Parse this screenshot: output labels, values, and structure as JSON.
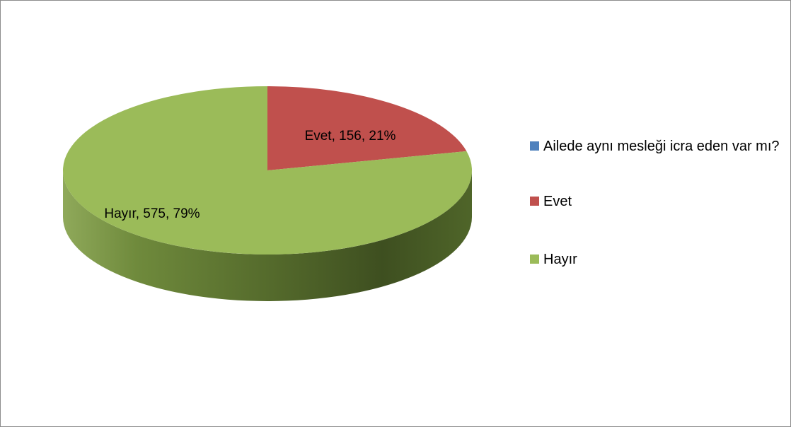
{
  "chart_data": {
    "type": "pie",
    "style": "3d",
    "series_name": "Ailede aynı mesleği icra eden var mı?",
    "categories": [
      "Evet",
      "Hayır"
    ],
    "values": [
      156,
      575
    ],
    "percents": [
      21,
      79
    ],
    "colors": [
      "#c0504d",
      "#9bbb59"
    ],
    "data_labels": [
      "Evet, 156, 21%",
      "Hayır, 575, 79%"
    ],
    "legend_placement": "right"
  },
  "legend": {
    "items": [
      {
        "label": "Ailede aynı mesleği icra eden var mı?",
        "color": "#4f81bd"
      },
      {
        "label": "Evet",
        "color": "#c0504d"
      },
      {
        "label": "Hayır",
        "color": "#9bbb59"
      }
    ]
  }
}
